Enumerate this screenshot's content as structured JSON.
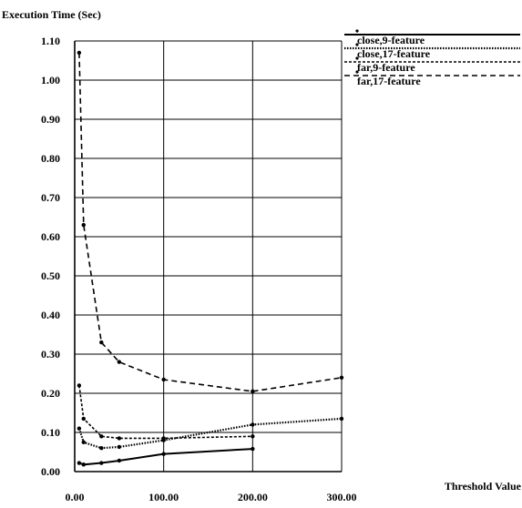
{
  "chart_data": {
    "type": "line",
    "ylabel": "Execution Time (Sec)",
    "xlabel": "Threshold Value",
    "xlim": [
      0,
      300
    ],
    "ylim": [
      0,
      1.1
    ],
    "x_ticks": [
      0,
      100,
      200,
      300
    ],
    "x_tick_labels": [
      "0.00",
      "100.00",
      "200.00",
      "300.00"
    ],
    "y_ticks": [
      0,
      0.1,
      0.2,
      0.3,
      0.4,
      0.5,
      0.6,
      0.7,
      0.8,
      0.9,
      1.0,
      1.1
    ],
    "y_tick_labels": [
      "0.00",
      "0.10",
      "0.20",
      "0.30",
      "0.40",
      "0.50",
      "0.60",
      "0.70",
      "0.80",
      "0.90",
      "1.00",
      "1.10"
    ],
    "grid": true,
    "legend_position": "right-top",
    "series": [
      {
        "name": "close,9-feature",
        "style": "solid",
        "x": [
          5,
          10,
          30,
          50,
          100,
          200
        ],
        "y": [
          0.022,
          0.018,
          0.022,
          0.028,
          0.045,
          0.058
        ]
      },
      {
        "name": "close,17-feature",
        "style": "dotted",
        "x": [
          5,
          10,
          30,
          50,
          100,
          200,
          300
        ],
        "y": [
          0.11,
          0.075,
          0.06,
          0.063,
          0.08,
          0.12,
          0.135
        ]
      },
      {
        "name": "far,9-feature",
        "style": "dashed",
        "x": [
          5,
          10,
          30,
          50,
          100,
          200
        ],
        "y": [
          0.22,
          0.135,
          0.09,
          0.085,
          0.085,
          0.09
        ]
      },
      {
        "name": "far,17-feature",
        "style": "long-dashed",
        "x": [
          5,
          10,
          30,
          50,
          100,
          200,
          300
        ],
        "y": [
          1.07,
          0.63,
          0.33,
          0.28,
          0.235,
          0.205,
          0.24
        ]
      }
    ]
  }
}
